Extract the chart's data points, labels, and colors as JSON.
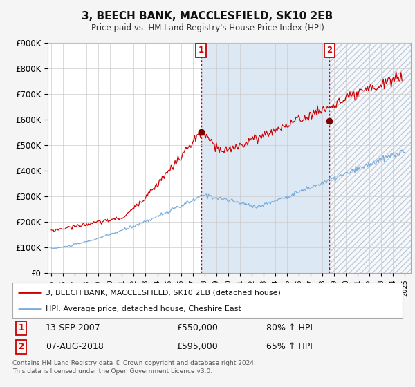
{
  "title": "3, BEECH BANK, MACCLESFIELD, SK10 2EB",
  "subtitle": "Price paid vs. HM Land Registry's House Price Index (HPI)",
  "ylim": [
    0,
    900000
  ],
  "xlim_start": 1994.7,
  "xlim_end": 2025.5,
  "yticks": [
    0,
    100000,
    200000,
    300000,
    400000,
    500000,
    600000,
    700000,
    800000,
    900000
  ],
  "ytick_labels": [
    "£0",
    "£100K",
    "£200K",
    "£300K",
    "£400K",
    "£500K",
    "£600K",
    "£700K",
    "£800K",
    "£900K"
  ],
  "sale1_x": 2007.71,
  "sale1_y": 550000,
  "sale2_x": 2018.59,
  "sale2_y": 595000,
  "sale1_date": "13-SEP-2007",
  "sale1_price": "£550,000",
  "sale1_hpi": "80% ↑ HPI",
  "sale2_date": "07-AUG-2018",
  "sale2_price": "£595,000",
  "sale2_hpi": "65% ↑ HPI",
  "line1_color": "#cc0000",
  "line2_color": "#7aacda",
  "dot_color": "#7a0000",
  "bg_color": "#f5f5f5",
  "plot_bg": "#ffffff",
  "shading_color": "#dce9f5",
  "vline_color": "#cc0000",
  "grid_color": "#cccccc",
  "footer": "Contains HM Land Registry data © Crown copyright and database right 2024.\nThis data is licensed under the Open Government Licence v3.0.",
  "legend1_label": "3, BEECH BANK, MACCLESFIELD, SK10 2EB (detached house)",
  "legend2_label": "HPI: Average price, detached house, Cheshire East"
}
